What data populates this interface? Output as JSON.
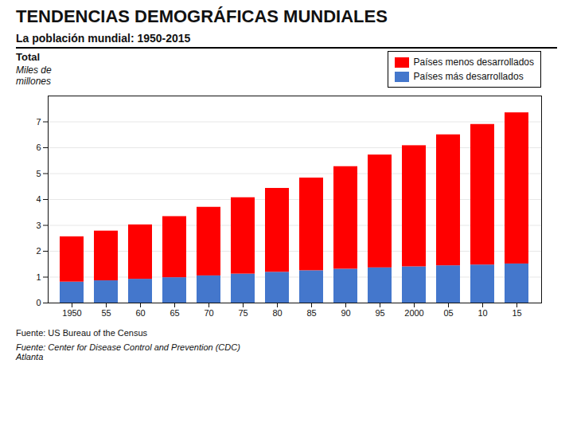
{
  "chart_data": {
    "type": "bar",
    "stacked": true,
    "title": "TENDENCIAS DEMOGRÁFICAS MUNDIALES",
    "subtitle": "La población mundial:  1950-2015",
    "ylabel": "Miles de\nmillones",
    "annotations": [
      "Total",
      "Fuente:  US Bureau of the Census",
      "Fuente: Center for Disease Control and Prevention (CDC)\nAtlanta"
    ],
    "categories": [
      "1950",
      "55",
      "60",
      "65",
      "70",
      "75",
      "80",
      "85",
      "90",
      "95",
      "2000",
      "05",
      "10",
      "15"
    ],
    "series": [
      {
        "name": "Países más desarrollados",
        "color": "#4477CC",
        "values": [
          0.81,
          0.86,
          0.92,
          0.98,
          1.05,
          1.12,
          1.19,
          1.25,
          1.31,
          1.36,
          1.4,
          1.44,
          1.47,
          1.51
        ]
      },
      {
        "name": "Países menos desarrollados",
        "color": "#FF0000",
        "values": [
          1.75,
          1.92,
          2.1,
          2.36,
          2.65,
          2.95,
          3.24,
          3.58,
          3.96,
          4.36,
          4.68,
          5.06,
          5.43,
          5.84
        ]
      }
    ],
    "ylim": [
      0,
      8
    ],
    "yticks": [
      0,
      1,
      2,
      3,
      4,
      5,
      6,
      7
    ],
    "grid": true,
    "legend": "upper right"
  }
}
